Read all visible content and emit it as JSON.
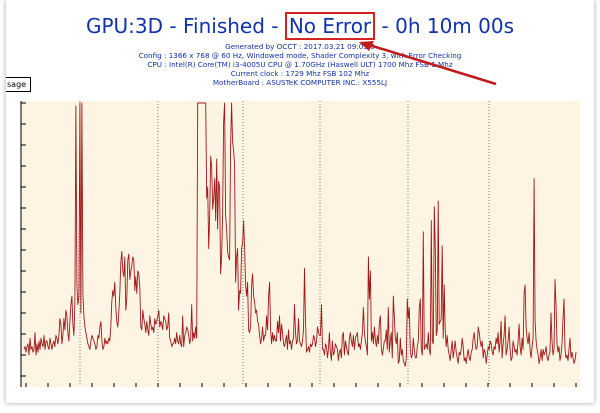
{
  "header": {
    "title_prefix": "GPU:3D - Finished - ",
    "title_highlight": "No Error",
    "title_suffix": " - 0h 10m 00s",
    "generated": "Generated by OCCT : 2017.03.21 09:03:0",
    "config": "Config : 1366 x 768 @ 60 Hz, Windowed mode, Shader Complexity 3, with Error Checking",
    "cpu": "CPU : Intel(R) Core(TM) i3-4005U CPU @ 1.70GHz (Haswell ULT) 1700 Mhz FSB 1 Mhz",
    "clock": "Current clock : 1729 Mhz FSB 102 Mhz",
    "motherboard": "MotherBoard : ASUSTeK COMPUTER INC.: X555LJ"
  },
  "legend_label": "sage",
  "colors": {
    "title": "#1133aa",
    "highlight": "#d42323",
    "plot_bg": "#fdf4e3",
    "series": "#a01818",
    "arrow": "#c01a1a"
  },
  "chart_data": {
    "type": "line",
    "ylim": [
      0,
      100
    ],
    "grid": true,
    "series": [
      {
        "values": [
          12,
          13,
          11,
          13,
          14,
          10,
          16,
          12,
          13,
          11,
          12,
          18,
          10,
          14,
          11,
          15,
          12,
          16,
          14,
          13,
          17,
          12,
          15,
          15,
          13,
          12,
          16,
          14,
          12,
          14,
          15,
          13,
          17,
          16,
          14,
          17,
          23,
          21,
          14,
          17,
          23,
          19,
          26,
          24,
          18,
          15,
          22,
          28,
          31,
          21,
          17,
          29,
          99,
          35,
          28,
          31,
          100,
          25,
          100,
          32,
          24,
          20,
          18,
          16,
          14,
          13,
          12,
          15,
          17,
          16,
          15,
          14,
          12,
          13,
          17,
          16,
          20,
          22,
          15,
          12,
          13,
          16,
          14,
          15,
          14,
          16,
          15,
          20,
          29,
          33,
          31,
          36,
          27,
          22,
          20,
          25,
          32,
          43,
          47,
          40,
          38,
          45,
          26,
          30,
          44,
          46,
          37,
          40,
          42,
          45,
          44,
          33,
          38,
          32,
          40,
          39,
          34,
          20,
          19,
          26,
          23,
          21,
          18,
          22,
          19,
          17,
          24,
          21,
          19,
          20,
          18,
          23,
          21,
          22,
          24,
          26,
          20,
          22,
          21,
          19,
          24,
          23,
          22,
          19,
          20,
          25,
          16,
          15,
          13,
          14,
          14,
          16,
          14,
          18,
          15,
          14,
          17,
          14,
          13,
          24,
          13,
          17,
          18,
          20,
          19,
          17,
          14,
          16,
          28,
          15,
          18,
          16,
          20,
          16,
          100,
          100,
          100,
          100,
          100,
          100,
          100,
          100,
          100,
          66,
          70,
          48,
          60,
          81,
          77,
          62,
          66,
          73,
          58,
          80,
          55,
          72,
          70,
          39,
          45,
          60,
          93,
          100,
          60,
          55,
          47,
          45,
          44,
          85,
          100,
          86,
          83,
          78,
          36,
          45,
          48,
          26,
          33,
          32,
          48,
          50,
          58,
          48,
          35,
          31,
          36,
          19,
          18,
          20,
          35,
          39,
          31,
          29,
          25,
          26,
          22,
          21,
          17,
          14,
          16,
          20,
          15,
          17,
          17,
          24,
          19,
          31,
          36,
          19,
          14,
          18,
          15,
          17,
          15,
          15,
          22,
          18,
          24,
          15,
          21,
          18,
          14,
          13,
          15,
          17,
          12,
          19,
          14,
          15,
          12,
          15,
          16,
          28,
          18,
          14,
          15,
          23,
          15,
          14,
          13,
          15,
          19,
          41,
          22,
          11,
          12,
          13,
          11,
          14,
          13,
          14,
          17,
          16,
          13,
          15,
          20,
          18,
          17,
          17,
          28,
          12,
          12,
          10,
          14,
          13,
          9,
          12,
          18,
          11,
          8,
          15,
          10,
          11,
          14,
          13,
          12,
          8,
          11,
          12,
          9,
          17,
          18,
          10,
          15,
          13,
          11,
          10,
          16,
          18,
          15,
          13,
          17,
          12,
          16,
          17,
          18,
          13,
          14,
          12,
          15,
          18,
          27,
          18,
          15,
          13,
          10,
          45,
          30,
          40,
          15,
          18,
          14,
          20,
          15,
          13,
          17,
          14,
          22,
          24,
          12,
          10,
          12,
          15,
          15,
          19,
          12,
          27,
          11,
          15,
          18,
          9,
          31,
          24,
          16,
          14,
          18,
          7,
          8,
          16,
          10,
          12,
          8,
          7,
          6,
          9,
          30,
          23,
          27,
          12,
          9,
          10,
          16,
          12,
          9,
          9,
          13,
          15,
          27,
          30,
          12,
          10,
          54,
          12,
          13,
          14,
          12,
          18,
          12,
          10,
          58,
          15,
          14,
          63,
          48,
          17,
          19,
          65,
          21,
          22,
          23,
          49,
          16,
          35,
          19,
          13,
          17,
          12,
          10,
          8,
          12,
          15,
          9,
          12,
          15,
          11,
          9,
          7,
          11,
          10,
          12,
          16,
          13,
          8,
          9,
          7,
          10,
          12,
          9,
          8,
          11,
          12,
          16,
          18,
          14,
          12,
          13,
          20,
          18,
          15,
          13,
          15,
          9,
          12,
          11,
          7,
          10,
          13,
          12,
          15,
          14,
          11,
          10,
          13,
          12,
          16,
          14,
          18,
          11,
          15,
          22,
          9,
          14,
          17,
          24,
          10,
          12,
          15,
          20,
          12,
          8,
          9,
          15,
          13,
          11,
          12,
          10,
          15,
          21,
          13,
          10,
          16,
          12,
          32,
          35,
          20,
          16,
          14,
          18,
          12,
          9,
          13,
          16,
          73,
          22,
          15,
          12,
          10,
          7,
          9,
          12,
          8,
          12,
          10,
          11,
          13,
          9,
          8,
          10,
          11,
          25,
          15,
          10,
          12,
          37,
          28,
          14,
          11,
          13,
          8,
          10,
          14,
          23,
          30,
          12,
          9,
          10,
          8,
          12,
          16,
          9,
          11,
          9,
          7,
          8,
          11
        ]
      }
    ]
  }
}
